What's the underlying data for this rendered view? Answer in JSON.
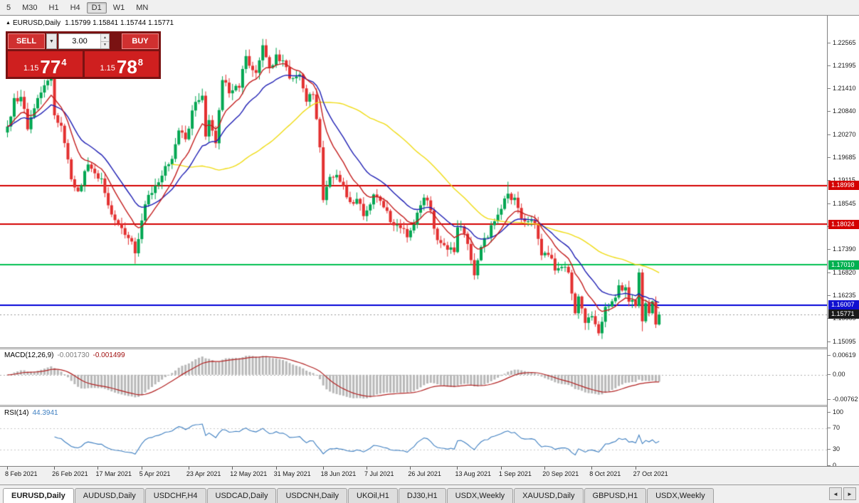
{
  "toolbar": {
    "timeframes": [
      {
        "label": "5",
        "active": false
      },
      {
        "label": "M30",
        "active": false
      },
      {
        "label": "H1",
        "active": false
      },
      {
        "label": "H4",
        "active": false
      },
      {
        "label": "D1",
        "active": true
      },
      {
        "label": "W1",
        "active": false
      },
      {
        "label": "MN",
        "active": false
      }
    ]
  },
  "chart": {
    "symbol_marker": "▲",
    "title": "EURUSD,Daily",
    "ohlc": "1.15799 1.15841 1.15744 1.15771"
  },
  "trade_panel": {
    "sell_label": "SELL",
    "buy_label": "BUY",
    "volume": "3.00",
    "dropdown_icon": "▼",
    "spinner_up": "▲",
    "spinner_down": "▼",
    "bid": {
      "prefix": "1.15",
      "big": "77",
      "sup": "4"
    },
    "ask": {
      "prefix": "1.15",
      "big": "78",
      "sup": "8"
    }
  },
  "price_scale": {
    "labels": [
      "1.22565",
      "1.21995",
      "1.21410",
      "1.20840",
      "1.20270",
      "1.19685",
      "1.19115",
      "1.18545",
      "1.17960",
      "1.17390",
      "1.16820",
      "1.16235",
      "1.15665",
      "1.15095"
    ],
    "tags": [
      {
        "price": 1.18998,
        "label": "1.18998",
        "color": "#d40000"
      },
      {
        "price": 1.18024,
        "label": "1.18024",
        "color": "#d40000"
      },
      {
        "price": 1.1701,
        "label": "1.17010",
        "color": "#00b050"
      },
      {
        "price": 1.16007,
        "label": "1.16007",
        "color": "#1010d0"
      },
      {
        "price": 1.15771,
        "label": "1.15771",
        "color": "#1a1a1a"
      }
    ]
  },
  "time_axis": {
    "labels": [
      {
        "label": "8 Feb 2021",
        "t": 0
      },
      {
        "label": "26 Feb 2021",
        "t": 14
      },
      {
        "label": "17 Mar 2021",
        "t": 27
      },
      {
        "label": "5 Apr 2021",
        "t": 40
      },
      {
        "label": "23 Apr 2021",
        "t": 54
      },
      {
        "label": "12 May 2021",
        "t": 67
      },
      {
        "label": "31 May 2021",
        "t": 80
      },
      {
        "label": "18 Jun 2021",
        "t": 94
      },
      {
        "label": "7 Jul 2021",
        "t": 107
      },
      {
        "label": "26 Jul 2021",
        "t": 120
      },
      {
        "label": "13 Aug 2021",
        "t": 134
      },
      {
        "label": "1 Sep 2021",
        "t": 147
      },
      {
        "label": "20 Sep 2021",
        "t": 160
      },
      {
        "label": "8 Oct 2021",
        "t": 174
      },
      {
        "label": "27 Oct 2021",
        "t": 187
      }
    ]
  },
  "macd": {
    "name": "MACD(12,26,9)",
    "value1": "-0.001730",
    "value2": "-0.001499",
    "scale": [
      {
        "label": "0.00619",
        "v": 0.00619
      },
      {
        "label": "0.00",
        "v": 0
      },
      {
        "label": "-0.00762",
        "v": -0.00762
      }
    ]
  },
  "rsi": {
    "name": "RSI(14)",
    "value": "44.3941",
    "scale": [
      {
        "label": "100",
        "v": 100
      },
      {
        "label": "70",
        "v": 70
      },
      {
        "label": "30",
        "v": 30
      },
      {
        "label": "0",
        "v": 0
      }
    ]
  },
  "tabs": {
    "scroll_left": "◄",
    "scroll_right": "►",
    "items": [
      {
        "label": "EURUSD,Daily",
        "active": true
      },
      {
        "label": "AUDUSD,Daily",
        "active": false
      },
      {
        "label": "USDCHF,H4",
        "active": false
      },
      {
        "label": "USDCAD,Daily",
        "active": false
      },
      {
        "label": "USDCNH,Daily",
        "active": false
      },
      {
        "label": "UKOil,H1",
        "active": false
      },
      {
        "label": "DJ30,H1",
        "active": false
      },
      {
        "label": "USDX,Weekly",
        "active": false
      },
      {
        "label": "XAUUSD,Daily",
        "active": false
      },
      {
        "label": "GBPUSD,H1",
        "active": false
      },
      {
        "label": "USDX,Weekly",
        "active": false
      }
    ]
  },
  "chart_data": {
    "type": "candlestick",
    "symbol": "EURUSD",
    "timeframe": "Daily",
    "num_bars": 195,
    "price_range": {
      "top_label_price": 1.22565,
      "bottom_label_price": 1.15095
    },
    "current_price": 1.15771,
    "hlines": [
      {
        "price": 1.18998,
        "color": "#d40000",
        "width": 2
      },
      {
        "price": 1.18024,
        "color": "#d40000",
        "width": 2
      },
      {
        "price": 1.1701,
        "color": "#00c050",
        "width": 2
      },
      {
        "price": 1.16007,
        "color": "#0000d8",
        "width": 2
      }
    ],
    "moving_averages": [
      {
        "type": "sma",
        "period": 50,
        "color": "#f0dc14"
      },
      {
        "type": "ema",
        "period": 20,
        "color": "#1f1fb4"
      },
      {
        "type": "ema",
        "period": 10,
        "color": "#c41e1e"
      }
    ],
    "colors": {
      "up": "#00a651",
      "down": "#e33030",
      "macd_hist": "#b8b8b8",
      "macd_signal": "#b22222",
      "rsi": "#3e7fc1"
    },
    "macd_params": [
      12,
      26,
      9
    ],
    "rsi_period": 14,
    "waypoints": [
      {
        "t": 0,
        "c": 1.2047
      },
      {
        "t": 2,
        "c": 1.2118
      },
      {
        "t": 4,
        "c": 1.2121
      },
      {
        "t": 6,
        "c": 1.204
      },
      {
        "t": 9,
        "c": 1.2118
      },
      {
        "t": 11,
        "c": 1.215
      },
      {
        "t": 13,
        "c": 1.2175,
        "h": 1.2243
      },
      {
        "t": 14,
        "c": 1.2075
      },
      {
        "t": 16,
        "c": 1.2049
      },
      {
        "t": 19,
        "c": 1.1915
      },
      {
        "t": 21,
        "c": 1.1885
      },
      {
        "t": 24,
        "c": 1.1952
      },
      {
        "t": 26,
        "c": 1.193
      },
      {
        "t": 28,
        "c": 1.1917
      },
      {
        "t": 30,
        "c": 1.185
      },
      {
        "t": 32,
        "c": 1.1813
      },
      {
        "t": 34,
        "c": 1.1793
      },
      {
        "t": 36,
        "c": 1.1768
      },
      {
        "t": 38,
        "c": 1.173,
        "l": 1.1704
      },
      {
        "t": 40,
        "c": 1.1812
      },
      {
        "t": 42,
        "c": 1.1876
      },
      {
        "t": 44,
        "c": 1.1899
      },
      {
        "t": 47,
        "c": 1.1948
      },
      {
        "t": 49,
        "c": 1.1966
      },
      {
        "t": 51,
        "c": 1.2037
      },
      {
        "t": 53,
        "c": 1.2015
      },
      {
        "t": 55,
        "c": 1.2087
      },
      {
        "t": 58,
        "c": 1.2124
      },
      {
        "t": 59,
        "c": 1.2022
      },
      {
        "t": 60,
        "c": 1.2063
      },
      {
        "t": 62,
        "c": 1.2005
      },
      {
        "t": 64,
        "c": 1.2163
      },
      {
        "t": 66,
        "c": 1.213
      },
      {
        "t": 69,
        "c": 1.2144
      },
      {
        "t": 71,
        "c": 1.2223
      },
      {
        "t": 74,
        "c": 1.2181
      },
      {
        "t": 76,
        "c": 1.225,
        "h": 1.2266
      },
      {
        "t": 78,
        "c": 1.2194
      },
      {
        "t": 80,
        "c": 1.2227
      },
      {
        "t": 82,
        "c": 1.2212
      },
      {
        "t": 84,
        "c": 1.2167
      },
      {
        "t": 87,
        "c": 1.2177
      },
      {
        "t": 89,
        "c": 1.2109
      },
      {
        "t": 91,
        "c": 1.2127
      },
      {
        "t": 93,
        "c": 1.1995
      },
      {
        "t": 94,
        "c": 1.1863
      },
      {
        "t": 96,
        "c": 1.1921
      },
      {
        "t": 98,
        "c": 1.1926
      },
      {
        "t": 100,
        "c": 1.1898
      },
      {
        "t": 102,
        "c": 1.1858
      },
      {
        "t": 104,
        "c": 1.1866
      },
      {
        "t": 106,
        "c": 1.1823
      },
      {
        "t": 109,
        "c": 1.1877
      },
      {
        "t": 111,
        "c": 1.1861
      },
      {
        "t": 113,
        "c": 1.1836
      },
      {
        "t": 115,
        "c": 1.18
      },
      {
        "t": 117,
        "c": 1.1793
      },
      {
        "t": 119,
        "c": 1.177
      },
      {
        "t": 121,
        "c": 1.1802
      },
      {
        "t": 124,
        "c": 1.1869
      },
      {
        "t": 126,
        "c": 1.1837
      },
      {
        "t": 128,
        "c": 1.1763
      },
      {
        "t": 131,
        "c": 1.1739
      },
      {
        "t": 133,
        "c": 1.1733
      },
      {
        "t": 134,
        "c": 1.1795
      },
      {
        "t": 136,
        "c": 1.1779
      },
      {
        "t": 138,
        "c": 1.1713
      },
      {
        "t": 139,
        "c": 1.1675,
        "l": 1.1664
      },
      {
        "t": 141,
        "c": 1.1746
      },
      {
        "t": 143,
        "c": 1.177
      },
      {
        "t": 145,
        "c": 1.181
      },
      {
        "t": 147,
        "c": 1.1841
      },
      {
        "t": 149,
        "c": 1.1879,
        "h": 1.1909
      },
      {
        "t": 151,
        "c": 1.1869
      },
      {
        "t": 153,
        "c": 1.1817
      },
      {
        "t": 155,
        "c": 1.181
      },
      {
        "t": 157,
        "c": 1.1805
      },
      {
        "t": 159,
        "c": 1.1725
      },
      {
        "t": 161,
        "c": 1.1726
      },
      {
        "t": 163,
        "c": 1.1687
      },
      {
        "t": 165,
        "c": 1.1696
      },
      {
        "t": 167,
        "c": 1.1682
      },
      {
        "t": 169,
        "c": 1.158
      },
      {
        "t": 170,
        "c": 1.1622
      },
      {
        "t": 172,
        "c": 1.1556
      },
      {
        "t": 174,
        "c": 1.1573
      },
      {
        "t": 176,
        "c": 1.153,
        "l": 1.1524
      },
      {
        "t": 178,
        "c": 1.1596
      },
      {
        "t": 180,
        "c": 1.161
      },
      {
        "t": 182,
        "c": 1.165
      },
      {
        "t": 184,
        "c": 1.1645
      },
      {
        "t": 185,
        "c": 1.1609
      },
      {
        "t": 187,
        "c": 1.1598
      },
      {
        "t": 188,
        "c": 1.1682,
        "h": 1.1692
      },
      {
        "t": 189,
        "c": 1.156,
        "l": 1.1535
      },
      {
        "t": 190,
        "c": 1.1605
      },
      {
        "t": 191,
        "c": 1.158
      },
      {
        "t": 192,
        "c": 1.161
      },
      {
        "t": 193,
        "c": 1.1552
      },
      {
        "t": 194,
        "c": 1.15771
      }
    ]
  }
}
